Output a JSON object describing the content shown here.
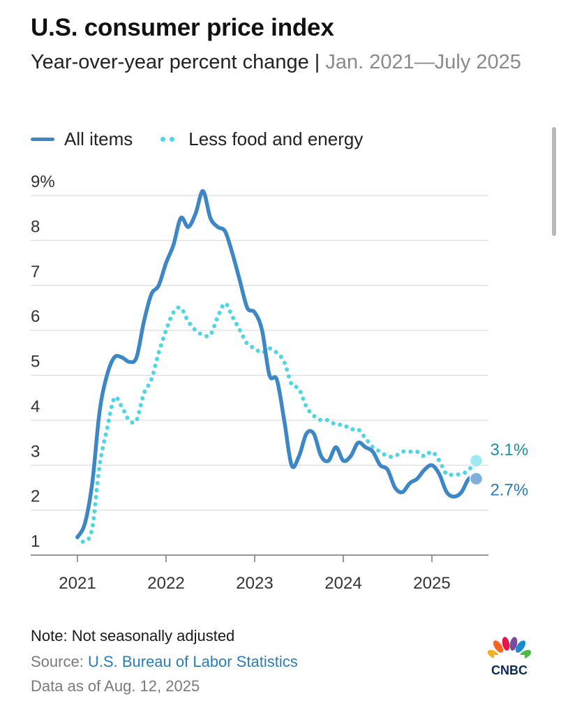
{
  "title": "U.S. consumer price index",
  "subtitle": {
    "main": "Year-over-year percent change | ",
    "range": "Jan. 2021—July 2025"
  },
  "legend": {
    "all_items": "All items",
    "core": "Less food and energy"
  },
  "footer": {
    "note": "Note: Not seasonally adjusted",
    "source_label": "Source: ",
    "source_link": "U.S. Bureau of Labor Statistics",
    "as_of": "Data as of Aug. 12, 2025"
  },
  "logo": {
    "text": "CNBC",
    "icon": "nbc-peacock-icon"
  },
  "colors": {
    "all_items": "#3d87c6",
    "core": "#4fd6e4",
    "core_label": "#1f8f9a",
    "all_items_label": "#2f7ab8",
    "grid": "#dddddd",
    "axis": "#777777"
  },
  "chart_data": {
    "type": "line",
    "title": "U.S. consumer price index",
    "subtitle": "Year-over-year percent change | Jan. 2021—July 2025",
    "ylim": [
      1,
      9
    ],
    "y_ticks": [
      "1",
      "2",
      "3",
      "4",
      "5",
      "6",
      "7",
      "8",
      "9%"
    ],
    "x_ticks": [
      "2021",
      "2022",
      "2023",
      "2024",
      "2025"
    ],
    "grid": "horizontal",
    "legend": "top-left",
    "x": [
      "2021-01",
      "2021-02",
      "2021-03",
      "2021-04",
      "2021-05",
      "2021-06",
      "2021-07",
      "2021-08",
      "2021-09",
      "2021-10",
      "2021-11",
      "2021-12",
      "2022-01",
      "2022-02",
      "2022-03",
      "2022-04",
      "2022-05",
      "2022-06",
      "2022-07",
      "2022-08",
      "2022-09",
      "2022-10",
      "2022-11",
      "2022-12",
      "2023-01",
      "2023-02",
      "2023-03",
      "2023-04",
      "2023-05",
      "2023-06",
      "2023-07",
      "2023-08",
      "2023-09",
      "2023-10",
      "2023-11",
      "2023-12",
      "2024-01",
      "2024-02",
      "2024-03",
      "2024-04",
      "2024-05",
      "2024-06",
      "2024-07",
      "2024-08",
      "2024-09",
      "2024-10",
      "2024-11",
      "2024-12",
      "2025-01",
      "2025-02",
      "2025-03",
      "2025-04",
      "2025-05",
      "2025-06",
      "2025-07"
    ],
    "series": [
      {
        "name": "All items",
        "style": "solid",
        "end_label": "2.7%",
        "values": [
          1.4,
          1.7,
          2.6,
          4.2,
          5.0,
          5.4,
          5.4,
          5.3,
          5.4,
          6.2,
          6.8,
          7.0,
          7.5,
          7.9,
          8.5,
          8.3,
          8.6,
          9.1,
          8.5,
          8.3,
          8.2,
          7.7,
          7.1,
          6.5,
          6.4,
          6.0,
          5.0,
          4.9,
          4.0,
          3.0,
          3.2,
          3.7,
          3.7,
          3.2,
          3.1,
          3.4,
          3.1,
          3.2,
          3.5,
          3.4,
          3.3,
          3.0,
          2.9,
          2.5,
          2.4,
          2.6,
          2.7,
          2.9,
          3.0,
          2.8,
          2.4,
          2.3,
          2.4,
          2.7,
          2.7
        ]
      },
      {
        "name": "Less food and energy",
        "style": "dotted",
        "end_label": "3.1%",
        "values": [
          1.4,
          1.3,
          1.6,
          3.0,
          3.8,
          4.5,
          4.3,
          4.0,
          4.0,
          4.6,
          4.9,
          5.5,
          6.0,
          6.4,
          6.5,
          6.2,
          6.0,
          5.9,
          5.9,
          6.3,
          6.6,
          6.3,
          6.0,
          5.7,
          5.6,
          5.5,
          5.6,
          5.5,
          5.3,
          4.8,
          4.7,
          4.3,
          4.1,
          4.0,
          4.0,
          3.9,
          3.9,
          3.8,
          3.8,
          3.6,
          3.4,
          3.3,
          3.2,
          3.2,
          3.3,
          3.3,
          3.3,
          3.2,
          3.3,
          3.1,
          2.8,
          2.8,
          2.8,
          2.9,
          3.1
        ]
      }
    ]
  }
}
